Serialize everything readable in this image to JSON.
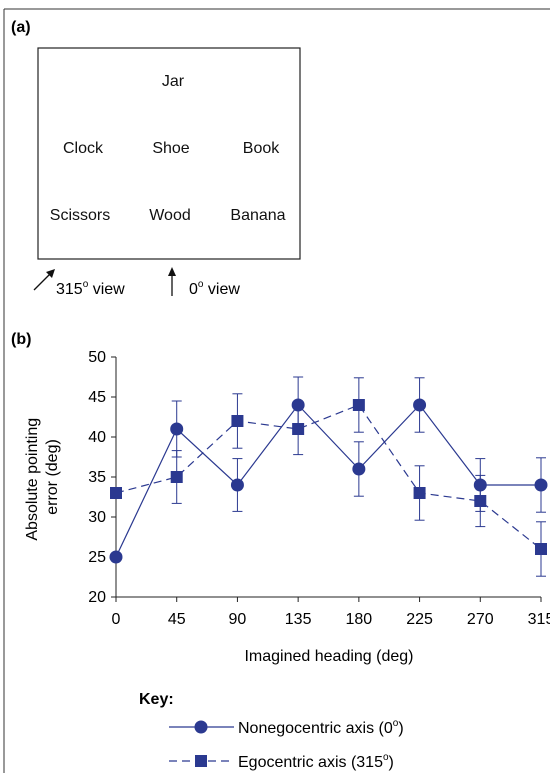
{
  "panel_a": {
    "label": "(a)",
    "objects": {
      "jar": "Jar",
      "clock": "Clock",
      "shoe": "Shoe",
      "book": "Book",
      "scissors": "Scissors",
      "wood": "Wood",
      "banana": "Banana"
    },
    "view_315": {
      "num": "315",
      "sup": "o",
      "rest": " view"
    },
    "view_0": {
      "num": "0",
      "sup": "o",
      "rest": " view"
    }
  },
  "panel_b": {
    "label": "(b)"
  },
  "chart_data": {
    "type": "line",
    "xlabel": "Imagined heading (deg)",
    "ylabel_lines": [
      "Absolute pointing",
      "error (deg)"
    ],
    "x": [
      0,
      45,
      90,
      135,
      180,
      225,
      270,
      315
    ],
    "x_tick_labels": [
      "0",
      "45",
      "90",
      "135",
      "180",
      "225",
      "270",
      "315"
    ],
    "xlim": [
      0,
      315
    ],
    "ylim": [
      20,
      50
    ],
    "y_ticks": [
      20,
      25,
      30,
      35,
      40,
      45,
      50
    ],
    "grid": false,
    "series": [
      {
        "key": "nonego",
        "marker": "circle",
        "dash": "solid",
        "values": [
          25,
          41,
          34,
          44,
          36,
          44,
          34,
          34
        ],
        "error": [
          null,
          3.5,
          3.3,
          3.5,
          3.4,
          3.4,
          3.3,
          3.4
        ]
      },
      {
        "key": "ego",
        "marker": "square",
        "dash": "dashed",
        "values": [
          33,
          35,
          42,
          41,
          44,
          33,
          32,
          26
        ],
        "error": [
          null,
          3.3,
          3.4,
          3.2,
          3.4,
          3.4,
          3.2,
          3.4
        ]
      }
    ],
    "color": "#2b3990"
  },
  "key": {
    "title": "Key:",
    "nonego": {
      "text": "Nonegocentric axis (0",
      "sup": "o",
      "end": ")"
    },
    "ego": {
      "text": "Egocentric axis (315",
      "sup": "o",
      "end": ")"
    }
  }
}
